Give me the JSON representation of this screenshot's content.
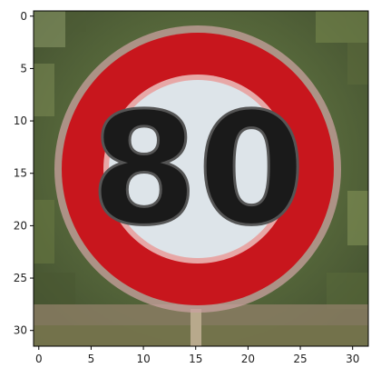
{
  "figure": {
    "xticks": [
      0,
      5,
      10,
      15,
      20,
      25,
      30
    ],
    "yticks": [
      0,
      5,
      10,
      15,
      20,
      25,
      30
    ],
    "image_grid": [
      32,
      32
    ],
    "xlim": [
      -0.5,
      31.5
    ],
    "ylim": [
      31.5,
      -0.5
    ],
    "image": {
      "subject": "speed-limit-80-sign",
      "sign_text": "80",
      "colors": {
        "ring_red": "#c8161d",
        "ring_edge": "#e7a7a6",
        "sign_fill": "#dde4e9",
        "digit_dark": "#1a1a1a",
        "foliage_dark": "#4b5a34",
        "foliage_light": "#7f9155",
        "ground": "#8a7c63"
      }
    }
  }
}
